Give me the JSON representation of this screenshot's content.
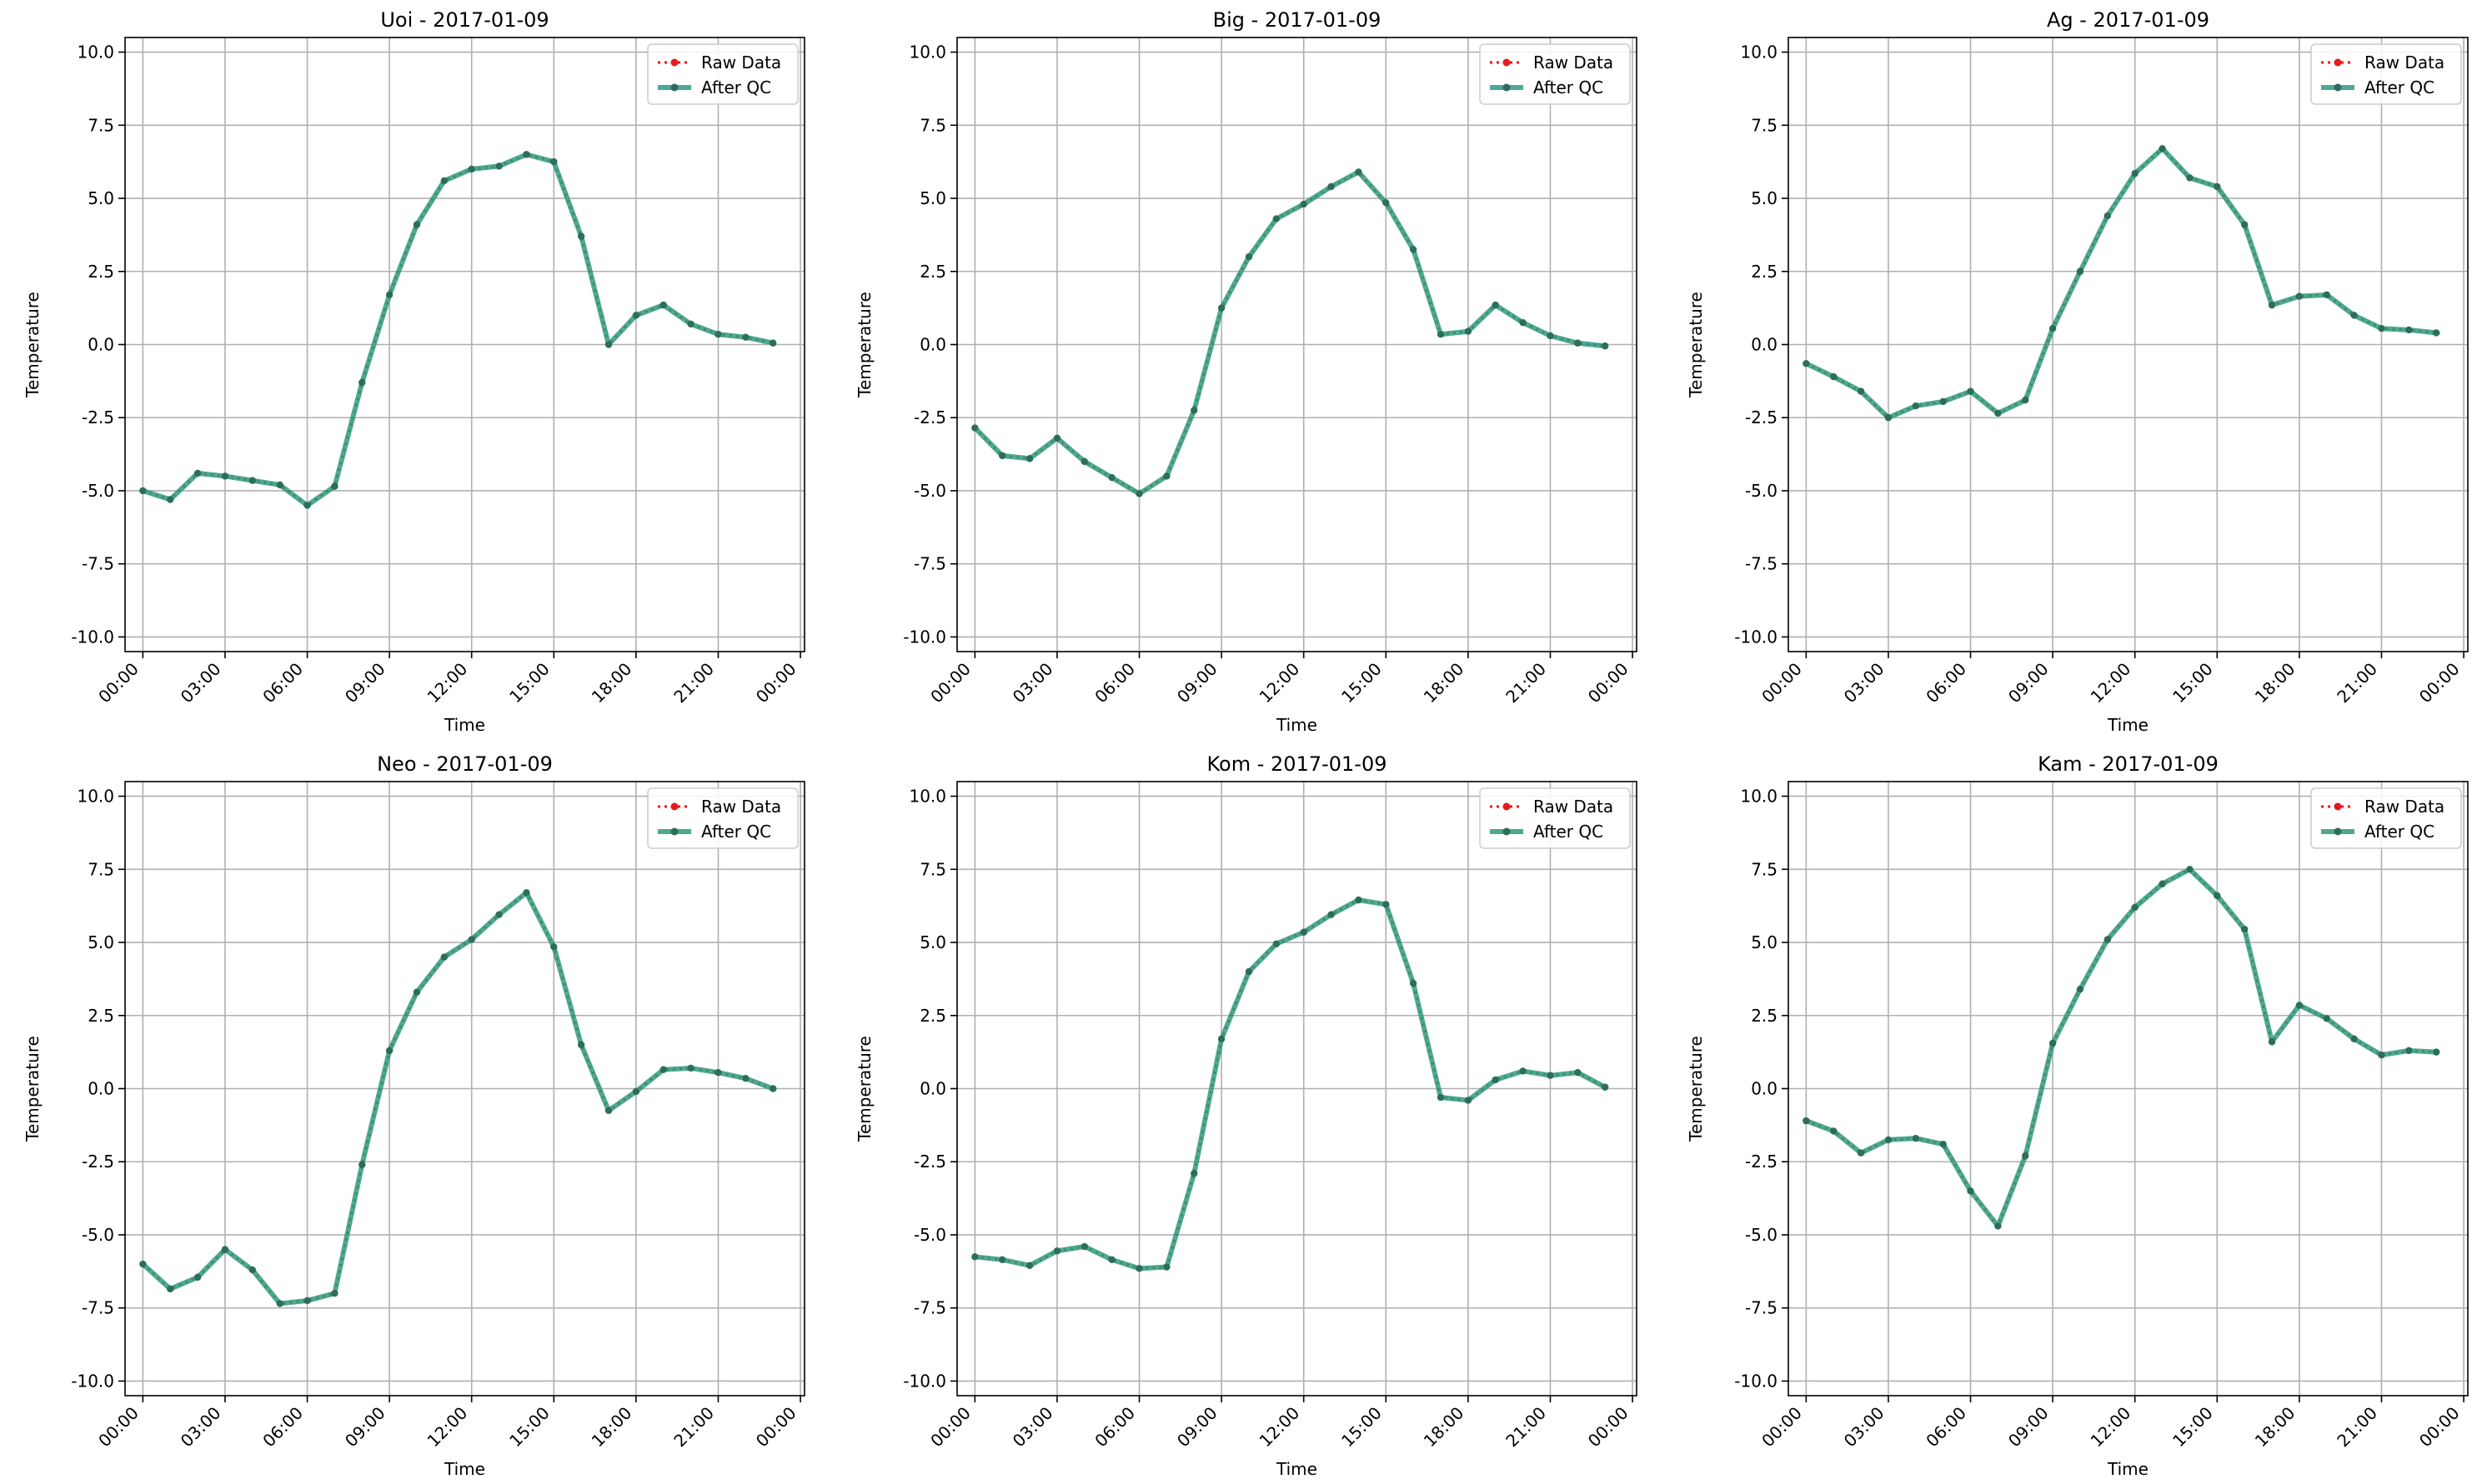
{
  "figure": {
    "legend_labels": {
      "raw": "Raw Data",
      "qc": "After QC"
    },
    "colors": {
      "raw": "#e41a1c",
      "qc": "#2e9b7c",
      "qc_marker": "#2c6e5a",
      "grid": "#b0b0b0"
    }
  },
  "chart_data": [
    {
      "type": "line",
      "title": "Uoi - 2017-01-09",
      "xlabel": "Time",
      "ylabel": "Temperature",
      "xticks": [
        "00:00",
        "03:00",
        "06:00",
        "09:00",
        "12:00",
        "15:00",
        "18:00",
        "21:00",
        "00:00"
      ],
      "yticks": [
        "-10.0",
        "-7.5",
        "-5.0",
        "-2.5",
        "0.0",
        "2.5",
        "5.0",
        "7.5",
        "10.0"
      ],
      "xlim_hours": [
        -0.65,
        24.15
      ],
      "ylim": [
        -10.5,
        10.5
      ],
      "grid": true,
      "legend_placement": "upper right",
      "x_hours": [
        0,
        1,
        2,
        3,
        4,
        5,
        6,
        7,
        8,
        9,
        10,
        11,
        12,
        13,
        14,
        15,
        16,
        17,
        18,
        19,
        20,
        21,
        22,
        23
      ],
      "series": [
        {
          "name": "Raw Data",
          "values": [
            -5.0,
            -5.3,
            -4.4,
            -4.5,
            -4.65,
            -4.8,
            -5.5,
            -4.85,
            -1.3,
            1.7,
            4.1,
            5.6,
            6.0,
            6.1,
            6.5,
            6.25,
            3.7,
            0.0,
            1.0,
            1.35,
            0.7,
            0.35,
            0.25,
            0.05
          ]
        },
        {
          "name": "After QC",
          "values": [
            -5.0,
            -5.3,
            -4.4,
            -4.5,
            -4.65,
            -4.8,
            -5.5,
            -4.85,
            -1.3,
            1.7,
            4.1,
            5.6,
            6.0,
            6.1,
            6.5,
            6.25,
            3.7,
            0.0,
            1.0,
            1.35,
            0.7,
            0.35,
            0.25,
            0.05
          ]
        }
      ]
    },
    {
      "type": "line",
      "title": "Big - 2017-01-09",
      "xlabel": "Time",
      "ylabel": "Temperature",
      "xticks": [
        "00:00",
        "03:00",
        "06:00",
        "09:00",
        "12:00",
        "15:00",
        "18:00",
        "21:00",
        "00:00"
      ],
      "yticks": [
        "-10.0",
        "-7.5",
        "-5.0",
        "-2.5",
        "0.0",
        "2.5",
        "5.0",
        "7.5",
        "10.0"
      ],
      "xlim_hours": [
        -0.65,
        24.15
      ],
      "ylim": [
        -10.5,
        10.5
      ],
      "grid": true,
      "legend_placement": "upper right",
      "x_hours": [
        0,
        1,
        2,
        3,
        4,
        5,
        6,
        7,
        8,
        9,
        10,
        11,
        12,
        13,
        14,
        15,
        16,
        17,
        18,
        19,
        20,
        21,
        22,
        23
      ],
      "series": [
        {
          "name": "Raw Data",
          "values": [
            -2.85,
            -3.8,
            -3.9,
            -3.2,
            -4.0,
            -4.55,
            -5.1,
            -4.5,
            -2.25,
            1.25,
            3.0,
            4.3,
            4.8,
            5.4,
            5.9,
            4.85,
            3.25,
            0.35,
            0.45,
            1.35,
            0.75,
            0.3,
            0.05,
            -0.05
          ]
        },
        {
          "name": "After QC",
          "values": [
            -2.85,
            -3.8,
            -3.9,
            -3.2,
            -4.0,
            -4.55,
            -5.1,
            -4.5,
            -2.25,
            1.25,
            3.0,
            4.3,
            4.8,
            5.4,
            5.9,
            4.85,
            3.25,
            0.35,
            0.45,
            1.35,
            0.75,
            0.3,
            0.05,
            -0.05
          ]
        }
      ]
    },
    {
      "type": "line",
      "title": "Ag - 2017-01-09",
      "xlabel": "Time",
      "ylabel": "Temperature",
      "xticks": [
        "00:00",
        "03:00",
        "06:00",
        "09:00",
        "12:00",
        "15:00",
        "18:00",
        "21:00",
        "00:00"
      ],
      "yticks": [
        "-10.0",
        "-7.5",
        "-5.0",
        "-2.5",
        "0.0",
        "2.5",
        "5.0",
        "7.5",
        "10.0"
      ],
      "xlim_hours": [
        -0.65,
        24.15
      ],
      "ylim": [
        -10.5,
        10.5
      ],
      "grid": true,
      "legend_placement": "upper right",
      "x_hours": [
        0,
        1,
        2,
        3,
        4,
        5,
        6,
        7,
        8,
        9,
        10,
        11,
        12,
        13,
        14,
        15,
        16,
        17,
        18,
        19,
        20,
        21,
        22,
        23
      ],
      "series": [
        {
          "name": "Raw Data",
          "values": [
            -0.65,
            -1.1,
            -1.6,
            -2.5,
            -2.1,
            -1.95,
            -1.6,
            -2.35,
            -1.9,
            0.55,
            2.5,
            4.4,
            5.85,
            6.7,
            5.7,
            5.4,
            4.1,
            1.35,
            1.65,
            1.7,
            1.0,
            0.55,
            0.5,
            0.4
          ]
        },
        {
          "name": "After QC",
          "values": [
            -0.65,
            -1.1,
            -1.6,
            -2.5,
            -2.1,
            -1.95,
            -1.6,
            -2.35,
            -1.9,
            0.55,
            2.5,
            4.4,
            5.85,
            6.7,
            5.7,
            5.4,
            4.1,
            1.35,
            1.65,
            1.7,
            1.0,
            0.55,
            0.5,
            0.4
          ]
        }
      ]
    },
    {
      "type": "line",
      "title": "Neo - 2017-01-09",
      "xlabel": "Time",
      "ylabel": "Temperature",
      "xticks": [
        "00:00",
        "03:00",
        "06:00",
        "09:00",
        "12:00",
        "15:00",
        "18:00",
        "21:00",
        "00:00"
      ],
      "yticks": [
        "-10.0",
        "-7.5",
        "-5.0",
        "-2.5",
        "0.0",
        "2.5",
        "5.0",
        "7.5",
        "10.0"
      ],
      "xlim_hours": [
        -0.65,
        24.15
      ],
      "ylim": [
        -10.5,
        10.5
      ],
      "grid": true,
      "legend_placement": "upper right",
      "x_hours": [
        0,
        1,
        2,
        3,
        4,
        5,
        6,
        7,
        8,
        9,
        10,
        11,
        12,
        13,
        14,
        15,
        16,
        17,
        18,
        19,
        20,
        21,
        22,
        23
      ],
      "series": [
        {
          "name": "Raw Data",
          "values": [
            -6.0,
            -6.85,
            -6.45,
            -5.5,
            -6.2,
            -7.35,
            -7.25,
            -7.0,
            -2.6,
            1.3,
            3.3,
            4.5,
            5.1,
            5.95,
            6.7,
            4.85,
            1.5,
            -0.75,
            -0.1,
            0.65,
            0.7,
            0.55,
            0.35,
            0.0
          ]
        },
        {
          "name": "After QC",
          "values": [
            -6.0,
            -6.85,
            -6.45,
            -5.5,
            -6.2,
            -7.35,
            -7.25,
            -7.0,
            -2.6,
            1.3,
            3.3,
            4.5,
            5.1,
            5.95,
            6.7,
            4.85,
            1.5,
            -0.75,
            -0.1,
            0.65,
            0.7,
            0.55,
            0.35,
            0.0
          ]
        }
      ]
    },
    {
      "type": "line",
      "title": "Kom - 2017-01-09",
      "xlabel": "Time",
      "ylabel": "Temperature",
      "xticks": [
        "00:00",
        "03:00",
        "06:00",
        "09:00",
        "12:00",
        "15:00",
        "18:00",
        "21:00",
        "00:00"
      ],
      "yticks": [
        "-10.0",
        "-7.5",
        "-5.0",
        "-2.5",
        "0.0",
        "2.5",
        "5.0",
        "7.5",
        "10.0"
      ],
      "xlim_hours": [
        -0.65,
        24.15
      ],
      "ylim": [
        -10.5,
        10.5
      ],
      "grid": true,
      "legend_placement": "upper right",
      "x_hours": [
        0,
        1,
        2,
        3,
        4,
        5,
        6,
        7,
        8,
        9,
        10,
        11,
        12,
        13,
        14,
        15,
        16,
        17,
        18,
        19,
        20,
        21,
        22,
        23
      ],
      "series": [
        {
          "name": "Raw Data",
          "values": [
            -5.75,
            -5.85,
            -6.05,
            -5.55,
            -5.4,
            -5.85,
            -6.15,
            -6.1,
            -2.9,
            1.7,
            4.0,
            4.95,
            5.35,
            5.95,
            6.45,
            6.3,
            3.6,
            -0.3,
            -0.4,
            0.3,
            0.6,
            0.45,
            0.55,
            0.05
          ]
        },
        {
          "name": "After QC",
          "values": [
            -5.75,
            -5.85,
            -6.05,
            -5.55,
            -5.4,
            -5.85,
            -6.15,
            -6.1,
            -2.9,
            1.7,
            4.0,
            4.95,
            5.35,
            5.95,
            6.45,
            6.3,
            3.6,
            -0.3,
            -0.4,
            0.3,
            0.6,
            0.45,
            0.55,
            0.05
          ]
        }
      ]
    },
    {
      "type": "line",
      "title": "Kam - 2017-01-09",
      "xlabel": "Time",
      "ylabel": "Temperature",
      "xticks": [
        "00:00",
        "03:00",
        "06:00",
        "09:00",
        "12:00",
        "15:00",
        "18:00",
        "21:00",
        "00:00"
      ],
      "yticks": [
        "-10.0",
        "-7.5",
        "-5.0",
        "-2.5",
        "0.0",
        "2.5",
        "5.0",
        "7.5",
        "10.0"
      ],
      "xlim_hours": [
        -0.65,
        24.15
      ],
      "ylim": [
        -10.5,
        10.5
      ],
      "grid": true,
      "legend_placement": "upper right",
      "x_hours": [
        0,
        1,
        2,
        3,
        4,
        5,
        6,
        7,
        8,
        9,
        10,
        11,
        12,
        13,
        14,
        15,
        16,
        17,
        18,
        19,
        20,
        21,
        22,
        23
      ],
      "series": [
        {
          "name": "Raw Data",
          "values": [
            -1.1,
            -1.45,
            -2.2,
            -1.75,
            -1.7,
            -1.9,
            -3.5,
            -4.7,
            -2.3,
            1.55,
            3.4,
            5.1,
            6.2,
            7.0,
            7.5,
            6.6,
            5.45,
            1.6,
            2.85,
            2.4,
            1.7,
            1.15,
            1.3,
            1.25
          ]
        },
        {
          "name": "After QC",
          "values": [
            -1.1,
            -1.45,
            -2.2,
            -1.75,
            -1.7,
            -1.9,
            -3.5,
            -4.7,
            -2.3,
            1.55,
            3.4,
            5.1,
            6.2,
            7.0,
            7.5,
            6.6,
            5.45,
            1.6,
            2.85,
            2.4,
            1.7,
            1.15,
            1.3,
            1.25
          ]
        }
      ]
    }
  ]
}
